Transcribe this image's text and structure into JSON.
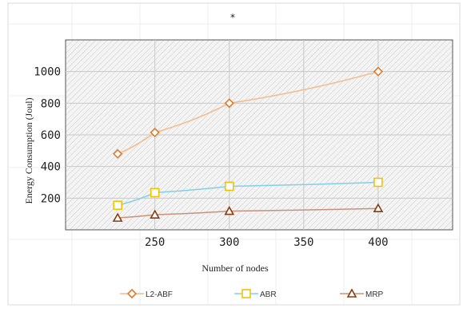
{
  "chart_data": {
    "type": "line",
    "title": "*",
    "xlabel": "Number of nodes",
    "ylabel": "Energy  Consumption (Joul)",
    "xlim": [
      190,
      450
    ],
    "ylim": [
      0,
      1200
    ],
    "x_ticks": [
      250,
      300,
      350,
      400
    ],
    "y_ticks": [
      200,
      400,
      600,
      800,
      1000
    ],
    "grid": true,
    "legend_position": "bottom",
    "series": [
      {
        "name": "L2-ABF",
        "marker": "diamond",
        "line_color": "#f5b98a",
        "marker_color": "#e07a28",
        "x": [
          225,
          250,
          300,
          400
        ],
        "y": [
          480,
          615,
          800,
          1000
        ]
      },
      {
        "name": "ABR",
        "marker": "square",
        "line_color": "#7fd0e8",
        "marker_color": "#f2c200",
        "x": [
          225,
          250,
          300,
          400
        ],
        "y": [
          155,
          235,
          275,
          300
        ]
      },
      {
        "name": "MRP",
        "marker": "triangle",
        "line_color": "#c9917a",
        "marker_color": "#8b3a0e",
        "x": [
          225,
          250,
          300,
          400
        ],
        "y": [
          75,
          95,
          118,
          135
        ]
      }
    ]
  }
}
